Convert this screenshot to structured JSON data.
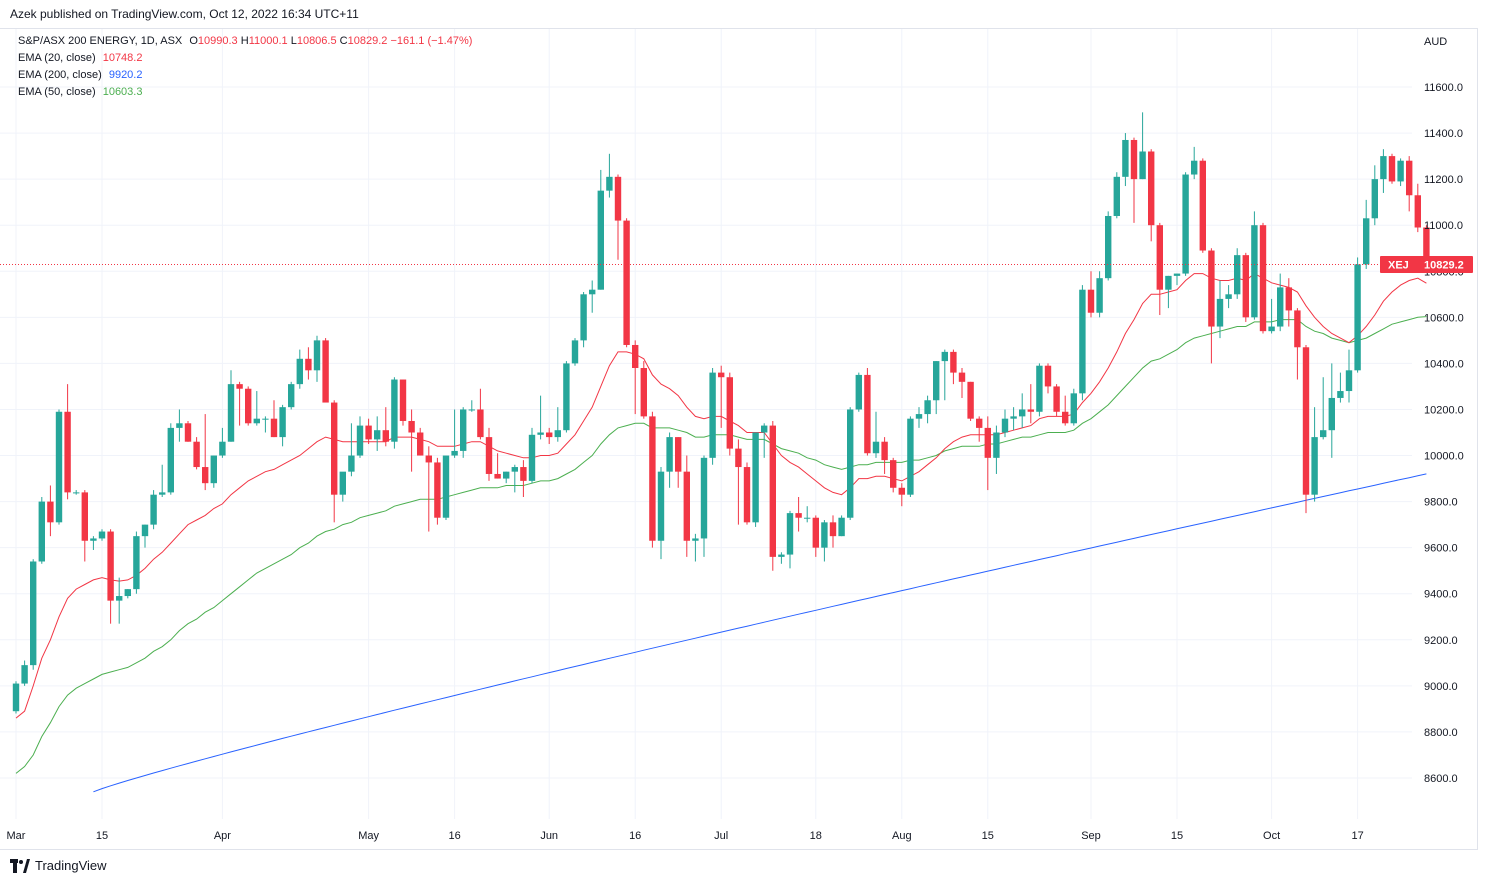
{
  "header": {
    "published_text": "Azek published on TradingView.com, Oct 12, 2022 16:34 UTC+11"
  },
  "legend": {
    "symbol_line": "S&P/ASX 200 ENERGY, 1D, ASX",
    "ohlc": {
      "o_label": "O",
      "o": "10990.3",
      "h_label": "H",
      "h": "11000.1",
      "l_label": "L",
      "l": "10806.5",
      "c_label": "C",
      "c": "10829.2",
      "change": "−161.1 (−1.47%)"
    },
    "ema20": {
      "label": "EMA (20, close)",
      "value": "10748.2"
    },
    "ema200": {
      "label": "EMA (200, close)",
      "value": "9920.2"
    },
    "ema50": {
      "label": "EMA (50, close)",
      "value": "10603.3"
    }
  },
  "price_tag": {
    "ticker": "XEJ",
    "price": "10829.2"
  },
  "brand": {
    "name": "TradingView"
  },
  "colors": {
    "up": "#26a69a",
    "down": "#f23645",
    "ema20": "#f23645",
    "ema200": "#2962ff",
    "ema50": "#4caf50",
    "grid": "#f0f3fa",
    "axis_text": "#131722"
  },
  "chart_data": {
    "type": "candlestick",
    "currency": "AUD",
    "y_ticks": [
      8600,
      8800,
      9000,
      9200,
      9400,
      9600,
      9800,
      10000,
      10200,
      10400,
      10600,
      10800,
      11000,
      11200,
      11400,
      11600
    ],
    "y_tick_labels": [
      "8600.0",
      "8800.0",
      "9000.0",
      "9200.0",
      "9400.0",
      "9600.0",
      "9800.0",
      "10000.0",
      "10200.0",
      "10400.0",
      "10600.0",
      "10800.0",
      "11000.0",
      "11200.0",
      "11400.0",
      "11600.0"
    ],
    "ylim": [
      8400,
      11800
    ],
    "x_labels": [
      {
        "label": "Mar",
        "bar": 0
      },
      {
        "label": "15",
        "bar": 10
      },
      {
        "label": "Apr",
        "bar": 24
      },
      {
        "label": "May",
        "bar": 41
      },
      {
        "label": "16",
        "bar": 51
      },
      {
        "label": "Jun",
        "bar": 62
      },
      {
        "label": "16",
        "bar": 72
      },
      {
        "label": "Jul",
        "bar": 82
      },
      {
        "label": "18",
        "bar": 93
      },
      {
        "label": "Aug",
        "bar": 103
      },
      {
        "label": "15",
        "bar": 113
      },
      {
        "label": "Sep",
        "bar": 125
      },
      {
        "label": "15",
        "bar": 135
      },
      {
        "label": "Oct",
        "bar": 146
      },
      {
        "label": "17",
        "bar": 156
      }
    ],
    "candles": [
      [
        8890,
        9020,
        8880,
        9010
      ],
      [
        9010,
        9110,
        9000,
        9090
      ],
      [
        9090,
        9550,
        9070,
        9540
      ],
      [
        9540,
        9820,
        9530,
        9800
      ],
      [
        9800,
        9870,
        9650,
        9710
      ],
      [
        9710,
        10200,
        9700,
        10190
      ],
      [
        10190,
        10310,
        9810,
        9840
      ],
      [
        9840,
        9850,
        9830,
        9840
      ],
      [
        9840,
        9850,
        9540,
        9630
      ],
      [
        9630,
        9650,
        9590,
        9640
      ],
      [
        9640,
        9680,
        9630,
        9670
      ],
      [
        9670,
        9680,
        9270,
        9370
      ],
      [
        9370,
        9470,
        9270,
        9390
      ],
      [
        9390,
        9420,
        9380,
        9420
      ],
      [
        9420,
        9670,
        9400,
        9650
      ],
      [
        9650,
        9700,
        9600,
        9700
      ],
      [
        9700,
        9850,
        9680,
        9830
      ],
      [
        9830,
        9960,
        9820,
        9840
      ],
      [
        9840,
        10140,
        9830,
        10120
      ],
      [
        10120,
        10200,
        10060,
        10140
      ],
      [
        10140,
        10150,
        10060,
        10060
      ],
      [
        10060,
        10080,
        9940,
        9950
      ],
      [
        9950,
        10180,
        9850,
        9880
      ],
      [
        9880,
        10000,
        9860,
        10000
      ],
      [
        10000,
        10120,
        9990,
        10060
      ],
      [
        10060,
        10370,
        10060,
        10310
      ],
      [
        10310,
        10320,
        10130,
        10290
      ],
      [
        10290,
        10300,
        10130,
        10140
      ],
      [
        10140,
        10280,
        10130,
        10160
      ],
      [
        10160,
        10170,
        10100,
        10160
      ],
      [
        10160,
        10240,
        10080,
        10080
      ],
      [
        10080,
        10220,
        10040,
        10210
      ],
      [
        10210,
        10320,
        10200,
        10310
      ],
      [
        10310,
        10460,
        10290,
        10420
      ],
      [
        10420,
        10470,
        10330,
        10370
      ],
      [
        10370,
        10520,
        10320,
        10500
      ],
      [
        10500,
        10510,
        10240,
        10230
      ],
      [
        10230,
        10240,
        9710,
        9830
      ],
      [
        9830,
        9920,
        9800,
        9930
      ],
      [
        9930,
        10140,
        9910,
        10000
      ],
      [
        10000,
        10170,
        9990,
        10130
      ],
      [
        10130,
        10160,
        10050,
        10070
      ],
      [
        10070,
        10170,
        10020,
        10110
      ],
      [
        10110,
        10210,
        10040,
        10060
      ],
      [
        10060,
        10340,
        10030,
        10330
      ],
      [
        10330,
        10330,
        10130,
        10150
      ],
      [
        10150,
        10200,
        9930,
        10100
      ],
      [
        10100,
        10120,
        10000,
        10000
      ],
      [
        10000,
        10040,
        9670,
        9970
      ],
      [
        9970,
        9990,
        9700,
        9730
      ],
      [
        9730,
        9990,
        9720,
        10000
      ],
      [
        10000,
        10200,
        9990,
        10020
      ],
      [
        10020,
        10210,
        9990,
        10200
      ],
      [
        10200,
        10240,
        10190,
        10200
      ],
      [
        10200,
        10290,
        10070,
        10080
      ],
      [
        10080,
        10120,
        9890,
        9920
      ],
      [
        9920,
        10010,
        9900,
        9900
      ],
      [
        9900,
        9930,
        9880,
        9930
      ],
      [
        9930,
        9960,
        9840,
        9950
      ],
      [
        9950,
        9980,
        9820,
        9890
      ],
      [
        9890,
        10120,
        9880,
        10090
      ],
      [
        10090,
        10260,
        10070,
        10100
      ],
      [
        10100,
        10120,
        10050,
        10080
      ],
      [
        10080,
        10210,
        10060,
        10110
      ],
      [
        10110,
        10410,
        10100,
        10400
      ],
      [
        10400,
        10510,
        10390,
        10500
      ],
      [
        10500,
        10710,
        10470,
        10700
      ],
      [
        10700,
        10760,
        10620,
        10720
      ],
      [
        10720,
        11240,
        10720,
        11150
      ],
      [
        11150,
        11310,
        11120,
        11210
      ],
      [
        11210,
        11220,
        10850,
        11020
      ],
      [
        11020,
        11030,
        10470,
        10480
      ],
      [
        10480,
        10500,
        10180,
        10380
      ],
      [
        10380,
        10410,
        10160,
        10170
      ],
      [
        10170,
        10190,
        9600,
        9630
      ],
      [
        9630,
        9950,
        9550,
        9930
      ],
      [
        9930,
        10100,
        9860,
        10080
      ],
      [
        10080,
        10080,
        9860,
        9930
      ],
      [
        9930,
        10000,
        9560,
        9630
      ],
      [
        9630,
        9660,
        9540,
        9640
      ],
      [
        9640,
        10000,
        9560,
        9990
      ],
      [
        9990,
        10380,
        9960,
        10360
      ],
      [
        10360,
        10390,
        10120,
        10340
      ],
      [
        10340,
        10360,
        10000,
        10030
      ],
      [
        10030,
        10070,
        9700,
        9950
      ],
      [
        9950,
        9970,
        9700,
        9710
      ],
      [
        9710,
        10100,
        9690,
        10100
      ],
      [
        10100,
        10140,
        9990,
        10130
      ],
      [
        10130,
        10150,
        9500,
        9560
      ],
      [
        9560,
        9580,
        9530,
        9570
      ],
      [
        9570,
        9760,
        9510,
        9750
      ],
      [
        9750,
        9820,
        9670,
        9730
      ],
      [
        9730,
        9780,
        9710,
        9730
      ],
      [
        9730,
        9740,
        9560,
        9600
      ],
      [
        9600,
        9720,
        9540,
        9710
      ],
      [
        9710,
        9740,
        9600,
        9650
      ],
      [
        9650,
        9740,
        9650,
        9730
      ],
      [
        9730,
        10210,
        9720,
        10200
      ],
      [
        10200,
        10360,
        10190,
        10350
      ],
      [
        10350,
        10380,
        10000,
        10010
      ],
      [
        10010,
        10190,
        9990,
        10060
      ],
      [
        10060,
        10080,
        9920,
        9980
      ],
      [
        9980,
        9990,
        9840,
        9860
      ],
      [
        9860,
        9880,
        9780,
        9830
      ],
      [
        9830,
        10170,
        9820,
        10160
      ],
      [
        10160,
        10210,
        10120,
        10180
      ],
      [
        10180,
        10260,
        10140,
        10240
      ],
      [
        10240,
        10410,
        10180,
        10410
      ],
      [
        10410,
        10460,
        10240,
        10450
      ],
      [
        10450,
        10460,
        10310,
        10360
      ],
      [
        10360,
        10380,
        10250,
        10320
      ],
      [
        10320,
        10320,
        10150,
        10160
      ],
      [
        10160,
        10170,
        10060,
        10120
      ],
      [
        10120,
        10170,
        9850,
        9990
      ],
      [
        9990,
        10130,
        9920,
        10100
      ],
      [
        10100,
        10200,
        10080,
        10160
      ],
      [
        10160,
        10210,
        10110,
        10170
      ],
      [
        10170,
        10270,
        10120,
        10200
      ],
      [
        10200,
        10310,
        10140,
        10190
      ],
      [
        10190,
        10400,
        10170,
        10390
      ],
      [
        10390,
        10400,
        10270,
        10300
      ],
      [
        10300,
        10310,
        10170,
        10190
      ],
      [
        10190,
        10260,
        10130,
        10140
      ],
      [
        10140,
        10290,
        10130,
        10270
      ],
      [
        10270,
        10740,
        10240,
        10720
      ],
      [
        10720,
        10800,
        10600,
        10620
      ],
      [
        10620,
        10800,
        10600,
        10770
      ],
      [
        10770,
        11060,
        10760,
        11040
      ],
      [
        11040,
        11230,
        11030,
        11210
      ],
      [
        11210,
        11400,
        11170,
        11370
      ],
      [
        11370,
        11380,
        11010,
        11200
      ],
      [
        11200,
        11490,
        11200,
        11320
      ],
      [
        11320,
        11330,
        10930,
        11000
      ],
      [
        11000,
        11010,
        10610,
        10720
      ],
      [
        10720,
        10780,
        10640,
        10780
      ],
      [
        10780,
        10790,
        10740,
        10790
      ],
      [
        10790,
        11230,
        10780,
        11220
      ],
      [
        11220,
        11340,
        11200,
        11280
      ],
      [
        11280,
        11290,
        10880,
        10890
      ],
      [
        10890,
        10900,
        10400,
        10560
      ],
      [
        10560,
        10760,
        10510,
        10680
      ],
      [
        10680,
        10740,
        10640,
        10700
      ],
      [
        10700,
        10900,
        10680,
        10870
      ],
      [
        10870,
        10880,
        10580,
        10600
      ],
      [
        10600,
        11060,
        10590,
        11000
      ],
      [
        11000,
        11010,
        10530,
        10540
      ],
      [
        10540,
        10680,
        10530,
        10560
      ],
      [
        10560,
        10790,
        10540,
        10730
      ],
      [
        10730,
        10770,
        10560,
        10630
      ],
      [
        10630,
        10640,
        10330,
        10470
      ],
      [
        10470,
        10480,
        9750,
        9830
      ],
      [
        9830,
        10210,
        9800,
        10080
      ],
      [
        10080,
        10340,
        10070,
        10110
      ],
      [
        10110,
        10400,
        9990,
        10250
      ],
      [
        10250,
        10360,
        10230,
        10280
      ],
      [
        10280,
        10460,
        10230,
        10370
      ],
      [
        10370,
        10860,
        10360,
        10830
      ],
      [
        10830,
        11110,
        10810,
        11030
      ],
      [
        11030,
        11260,
        11000,
        11200
      ],
      [
        11200,
        11330,
        11140,
        11300
      ],
      [
        11300,
        11310,
        11180,
        11190
      ],
      [
        11190,
        11290,
        11170,
        11280
      ],
      [
        11280,
        11300,
        11060,
        11130
      ],
      [
        11130,
        11180,
        10970,
        10990
      ],
      [
        10990,
        11000,
        10806.5,
        10829.2
      ]
    ],
    "ema20": [
      8860,
      8890,
      9000,
      9120,
      9200,
      9300,
      9380,
      9420,
      9440,
      9460,
      9470,
      9460,
      9455,
      9460,
      9480,
      9510,
      9550,
      9580,
      9620,
      9660,
      9700,
      9720,
      9740,
      9770,
      9790,
      9830,
      9860,
      9890,
      9910,
      9930,
      9940,
      9960,
      9980,
      10000,
      10030,
      10060,
      10080,
      10070,
      10060,
      10060,
      10060,
      10060,
      10060,
      10060,
      10080,
      10080,
      10080,
      10070,
      10060,
      10040,
      10040,
      10040,
      10050,
      10060,
      10060,
      10040,
      10020,
      10010,
      10000,
      9990,
      9990,
      10000,
      10000,
      10010,
      10050,
      10090,
      10150,
      10210,
      10300,
      10390,
      10450,
      10450,
      10440,
      10420,
      10350,
      10310,
      10290,
      10260,
      10210,
      10170,
      10160,
      10170,
      10170,
      10150,
      10130,
      10100,
      10100,
      10100,
      10050,
      10000,
      9970,
      9950,
      9920,
      9890,
      9860,
      9840,
      9830,
      9860,
      9900,
      9900,
      9910,
      9910,
      9900,
      9890,
      9910,
      9930,
      9960,
      9990,
      10030,
      10060,
      10080,
      10090,
      10090,
      10090,
      10090,
      10100,
      10110,
      10120,
      10130,
      10160,
      10170,
      10170,
      10170,
      10180,
      10230,
      10270,
      10320,
      10380,
      10450,
      10530,
      10590,
      10660,
      10700,
      10700,
      10710,
      10720,
      10760,
      10790,
      10790,
      10770,
      10760,
      10760,
      10770,
      10760,
      10790,
      10770,
      10750,
      10740,
      10730,
      10710,
      10650,
      10600,
      10560,
      10530,
      10510,
      10490,
      10520,
      10560,
      10610,
      10670,
      10710,
      10740,
      10760,
      10770,
      10748.2
    ],
    "ema50": [
      8620,
      8650,
      8700,
      8780,
      8840,
      8910,
      8960,
      8990,
      9010,
      9030,
      9050,
      9060,
      9070,
      9080,
      9100,
      9120,
      9150,
      9170,
      9200,
      9240,
      9270,
      9290,
      9320,
      9340,
      9370,
      9400,
      9430,
      9460,
      9490,
      9510,
      9530,
      9550,
      9570,
      9600,
      9620,
      9650,
      9670,
      9680,
      9700,
      9710,
      9730,
      9740,
      9750,
      9760,
      9780,
      9790,
      9800,
      9810,
      9810,
      9810,
      9820,
      9830,
      9840,
      9850,
      9860,
      9860,
      9860,
      9870,
      9870,
      9870,
      9880,
      9890,
      9890,
      9900,
      9920,
      9940,
      9970,
      10000,
      10050,
      10090,
      10120,
      10130,
      10140,
      10140,
      10120,
      10120,
      10120,
      10110,
      10100,
      10080,
      10080,
      10090,
      10090,
      10090,
      10080,
      10070,
      10070,
      10070,
      10050,
      10030,
      10020,
      10010,
      9990,
      9980,
      9960,
      9950,
      9940,
      9950,
      9960,
      9960,
      9970,
      9970,
      9970,
      9970,
      9980,
      9980,
      9990,
      10000,
      10020,
      10030,
      10040,
      10040,
      10040,
      10050,
      10050,
      10060,
      10070,
      10080,
      10080,
      10090,
      10100,
      10100,
      10100,
      10110,
      10140,
      10160,
      10190,
      10220,
      10260,
      10300,
      10340,
      10380,
      10410,
      10420,
      10440,
      10460,
      10490,
      10510,
      10520,
      10530,
      10540,
      10550,
      10560,
      10560,
      10580,
      10580,
      10580,
      10590,
      10590,
      10590,
      10560,
      10540,
      10530,
      10510,
      10500,
      10490,
      10500,
      10510,
      10530,
      10550,
      10570,
      10580,
      10590,
      10600,
      10603.3
    ]
  }
}
